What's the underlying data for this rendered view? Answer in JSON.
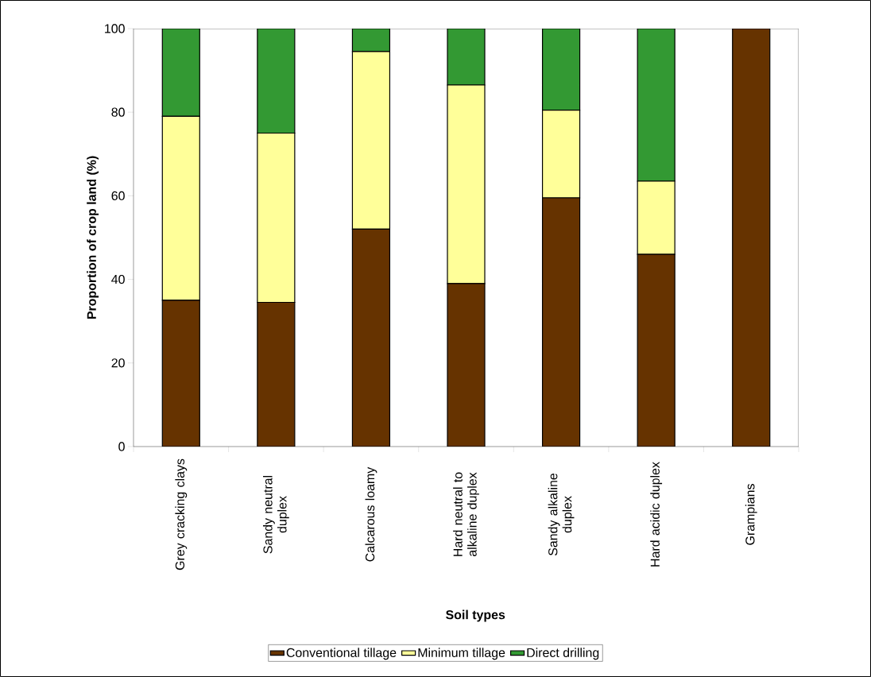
{
  "chart_data": {
    "type": "bar",
    "stacked": true,
    "xlabel": "Soil types",
    "ylabel": "Proportion of crop land (%)",
    "categories": [
      "Grey cracking clays",
      "Sandy neutral duplex",
      "Calcarous loamy",
      "Hard neutral to alkaline duplex",
      "Sandy alkaline duplex",
      "Hard acidic duplex",
      "Grampians"
    ],
    "series": [
      {
        "name": "Conventional tillage",
        "color": "#663300",
        "values": [
          35,
          34.5,
          52,
          39,
          59.5,
          46,
          100
        ]
      },
      {
        "name": "Minimum tillage",
        "color": "#ffff99",
        "values": [
          44,
          40.5,
          42.5,
          47.5,
          21,
          17.5,
          0
        ]
      },
      {
        "name": "Direct drilling",
        "color": "#339933",
        "values": [
          21,
          25,
          5.5,
          13.5,
          19.5,
          36.5,
          0
        ]
      }
    ],
    "ylim": [
      0,
      100
    ],
    "yticks": [
      0,
      20,
      40,
      60,
      80,
      100
    ],
    "grid": false,
    "legend": "bottom"
  }
}
